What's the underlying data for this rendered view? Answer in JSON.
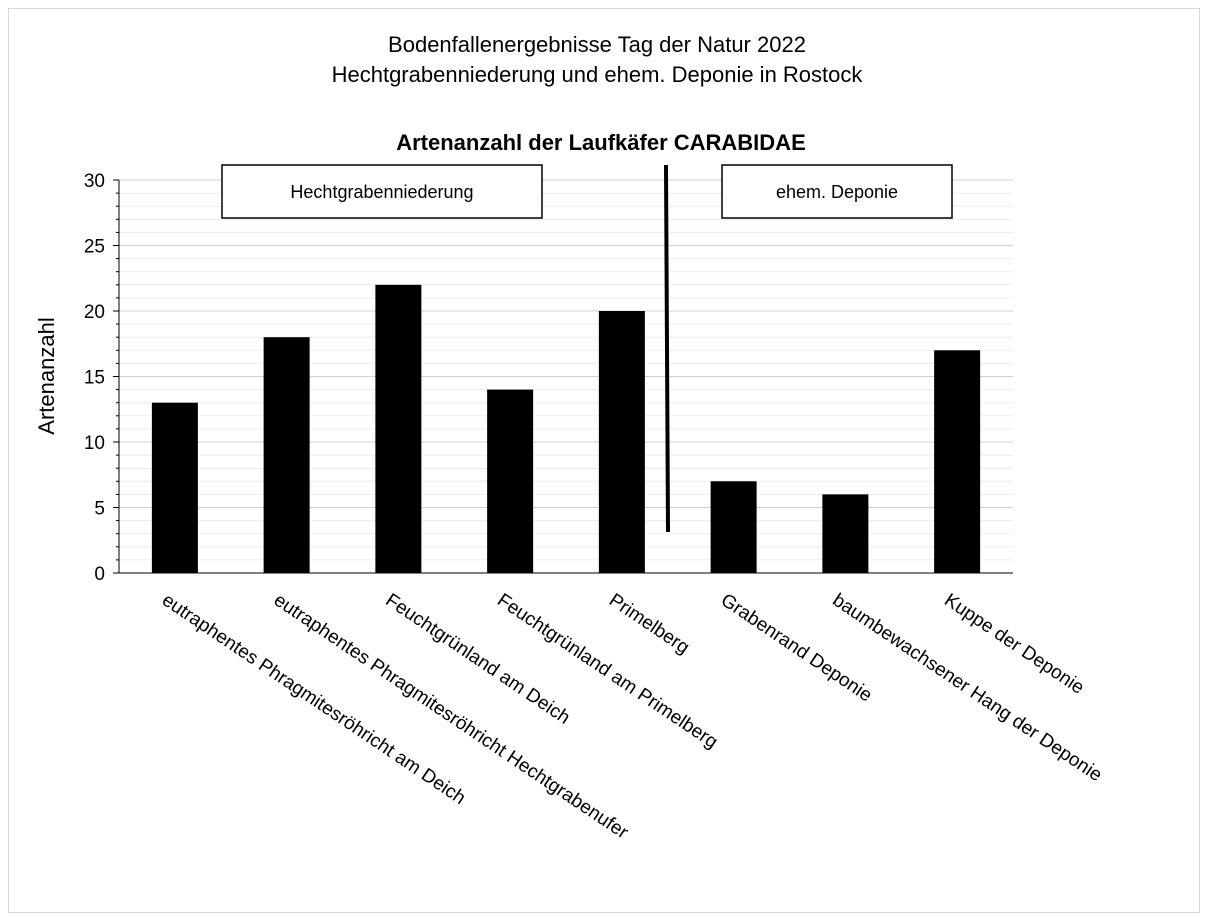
{
  "chart_data": {
    "type": "bar",
    "title_line1": "Bodenfallenergebnisse Tag der Natur 2022",
    "title_line2": "Hechtgrabenniederung und ehem. Deponie in Rostock",
    "subtitle": "Artenanzahl der Laufkäfer CARABIDAE",
    "ylabel": "Artenanzahl",
    "xlabel": "",
    "ylim": [
      0,
      30
    ],
    "yticks": [
      0,
      5,
      10,
      15,
      20,
      25,
      30
    ],
    "categories": [
      "eutraphentes Phragmitesröhricht am Deich",
      "eutraphentes Phragmitesröhricht Hechtgrabenufer",
      "Feuchtgrünland am Deich",
      "Feuchtgrünland am Primelberg",
      "Primelberg",
      "Grabenrand Deponie",
      "baumbewachsener Hang der Deponie",
      "Kuppe der Deponie"
    ],
    "values": [
      13,
      18,
      22,
      14,
      20,
      7,
      6,
      17
    ],
    "bar_color": "#000000",
    "grid": true,
    "annotations": {
      "left_group": "Hechtgrabenniederung",
      "right_group": "ehem. Deponie"
    }
  }
}
